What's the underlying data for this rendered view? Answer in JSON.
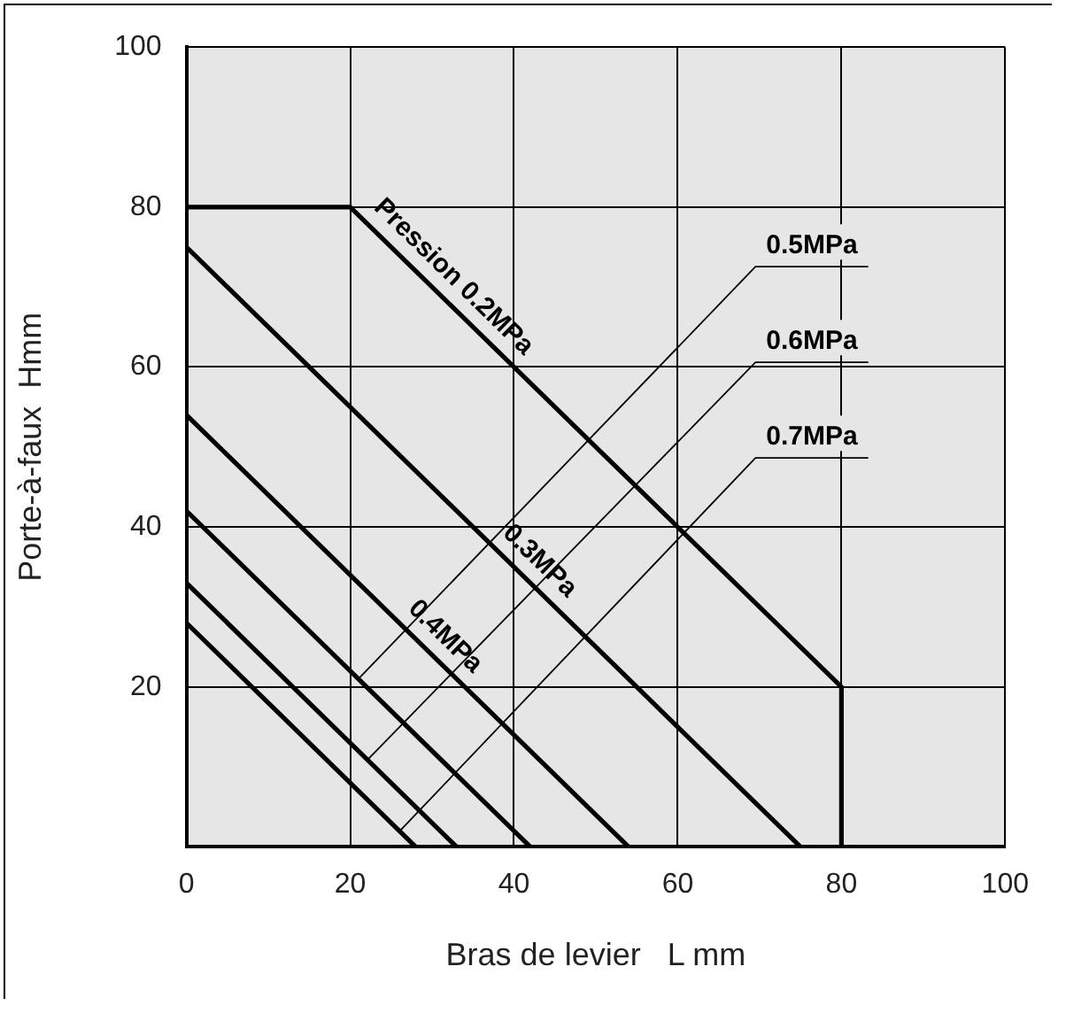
{
  "chart_data": {
    "type": "line",
    "xlabel": "Bras de levier   L mm",
    "ylabel": "Porte-à-faux  Hmm",
    "xlim": [
      0,
      100
    ],
    "ylim": [
      0,
      100
    ],
    "xticks": [
      0,
      20,
      40,
      60,
      80,
      100
    ],
    "yticks": [
      {
        "value": 0,
        "label": null
      },
      20,
      40,
      60,
      80,
      100
    ],
    "grid": true,
    "legend": false,
    "marker": "none",
    "line_style": "solid",
    "series": [
      {
        "name": "Pression 0.2MPa",
        "color": "#000000",
        "x": [
          0,
          20,
          80,
          80
        ],
        "values": [
          80,
          80,
          20,
          0
        ]
      },
      {
        "name": "0.3MPa",
        "color": "#000000",
        "x": [
          0,
          75
        ],
        "values": [
          75,
          0
        ]
      },
      {
        "name": "0.4MPa",
        "color": "#000000",
        "x": [
          0,
          54
        ],
        "values": [
          54,
          0
        ]
      },
      {
        "name": "0.5MPa",
        "color": "#000000",
        "x": [
          0,
          42
        ],
        "values": [
          42,
          0
        ]
      },
      {
        "name": "0.6MPa",
        "color": "#000000",
        "x": [
          0,
          33
        ],
        "values": [
          33,
          0
        ]
      },
      {
        "name": "0.7MPa",
        "color": "#000000",
        "x": [
          0,
          28
        ],
        "values": [
          28,
          0
        ]
      }
    ]
  }
}
